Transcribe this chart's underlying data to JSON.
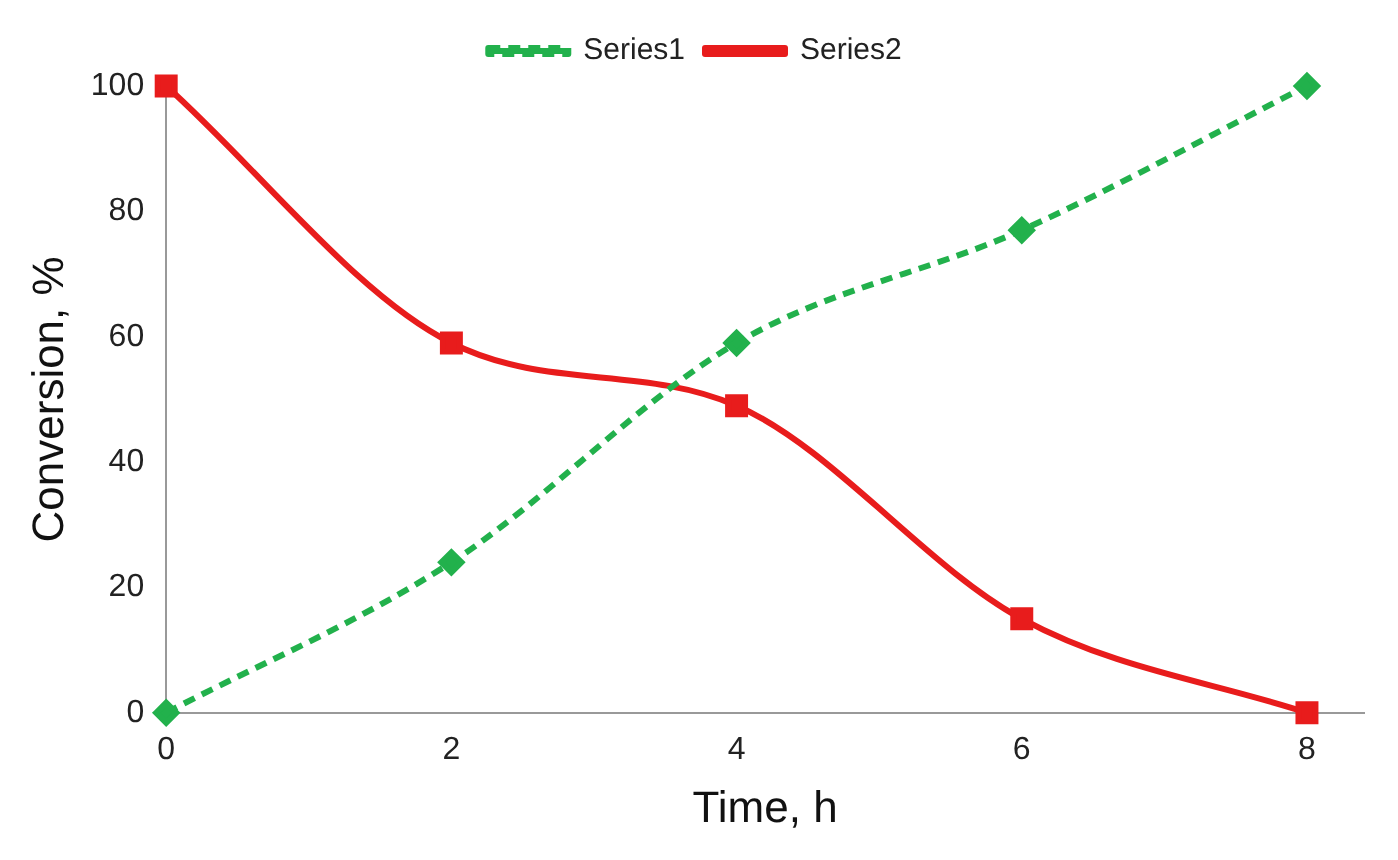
{
  "chart_data": {
    "type": "line",
    "xlabel": "Time, h",
    "ylabel": "Conversion, %",
    "x": [
      0,
      2,
      4,
      6,
      8
    ],
    "series": [
      {
        "name": "Series1",
        "color": "#22b14c",
        "values": [
          0,
          24,
          59,
          77,
          100
        ],
        "marker": "diamond",
        "line_style": "dashed"
      },
      {
        "name": "Series2",
        "color": "#e81c1c",
        "values": [
          100,
          59,
          49,
          15,
          0
        ],
        "marker": "square",
        "line_style": "solid"
      }
    ],
    "xlim": [
      0,
      8.4
    ],
    "xticks": [
      0,
      2,
      4,
      6,
      8
    ],
    "ylim": [
      0,
      100
    ],
    "yticks": [
      0,
      20,
      40,
      60,
      80,
      100
    ],
    "grid": false,
    "legend": "top"
  }
}
